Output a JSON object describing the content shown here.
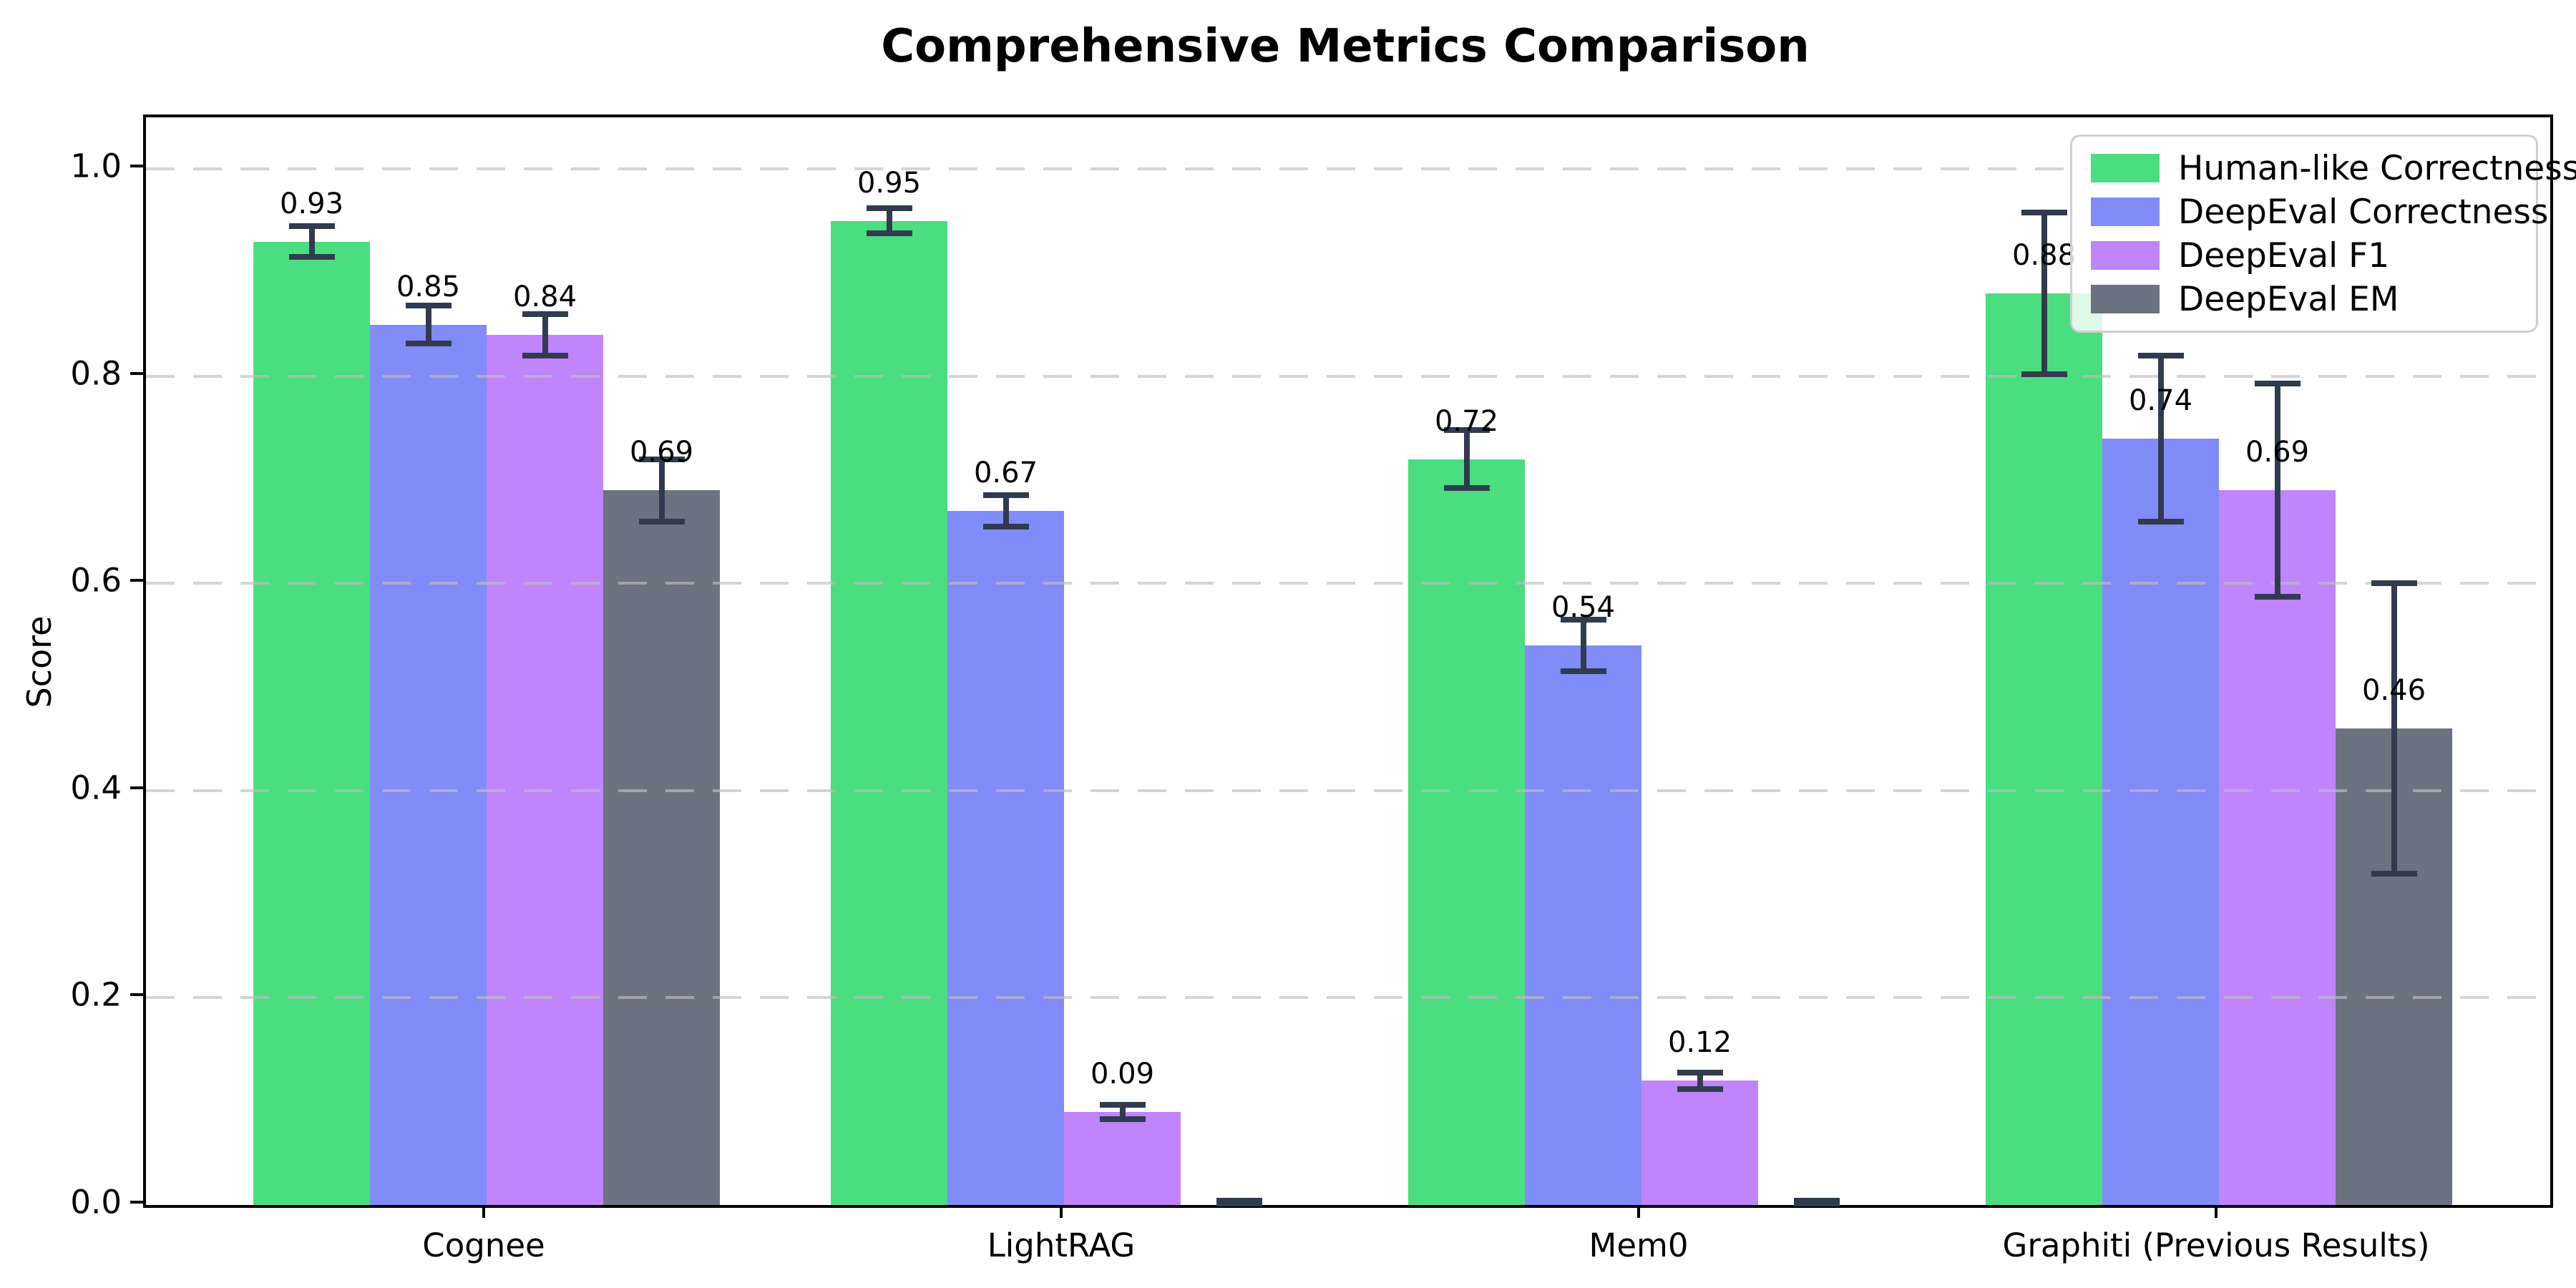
{
  "chart_data": {
    "type": "bar",
    "title": "Comprehensive Metrics Comparison",
    "ylabel": "Score",
    "xlabel": "",
    "categories": [
      "Cognee",
      "LightRAG",
      "Mem0",
      "Graphiti (Previous Results)"
    ],
    "series": [
      {
        "name": "Human-like Correctness",
        "color": "#4ade80",
        "values": [
          0.93,
          0.95,
          0.72,
          0.88
        ],
        "errors": [
          0.015,
          0.012,
          0.028,
          0.078
        ]
      },
      {
        "name": "DeepEval Correctness",
        "color": "#818cf8",
        "values": [
          0.85,
          0.67,
          0.54,
          0.74
        ],
        "errors": [
          0.018,
          0.015,
          0.025,
          0.08
        ]
      },
      {
        "name": "DeepEval F1",
        "color": "#c084fc",
        "values": [
          0.84,
          0.09,
          0.12,
          0.69
        ],
        "errors": [
          0.02,
          0.007,
          0.008,
          0.103
        ]
      },
      {
        "name": "DeepEval EM",
        "color": "#6b7280",
        "values": [
          0.69,
          0.0,
          0.0,
          0.46
        ],
        "errors": [
          0.03,
          0.004,
          0.004,
          0.14
        ]
      }
    ],
    "bar_value_labels": {
      "Cognee": [
        "0.93",
        "0.85",
        "0.84",
        "0.69"
      ],
      "LightRAG": [
        "0.95",
        "0.67",
        "0.09",
        ""
      ],
      "Mem0": [
        "0.72",
        "0.54",
        "0.12",
        ""
      ],
      "Graphiti (Previous Results)": [
        "0.88",
        "0.74",
        "0.69",
        "0.46"
      ]
    },
    "ylim": [
      0,
      1.05
    ],
    "yticks": [
      0.0,
      0.2,
      0.4,
      0.6,
      0.8,
      1.0
    ],
    "grid": {
      "axis": "y",
      "style": "dashed"
    },
    "legend_position": "upper right",
    "error_bar_color": "#313b4f"
  }
}
